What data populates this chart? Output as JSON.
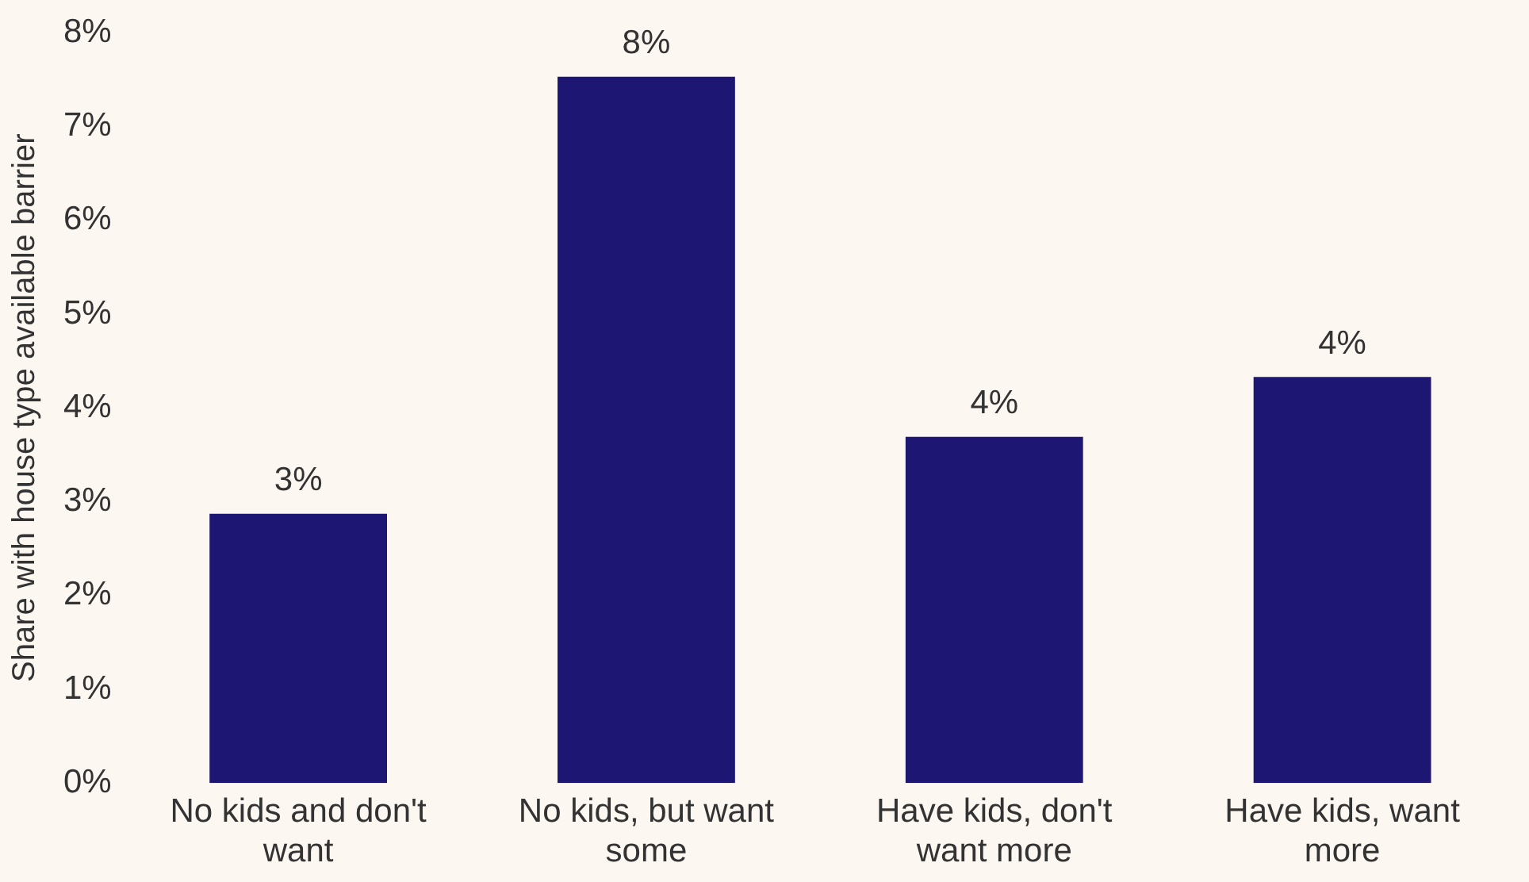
{
  "chart_data": {
    "type": "bar",
    "ylabel": "Share with house type available barrier",
    "categories": [
      "No kids and don't want",
      "No kids, but want some",
      "Have kids, don't want more",
      "Have kids, want more"
    ],
    "values": [
      2.87,
      7.53,
      3.69,
      4.33
    ],
    "color": "#1e1673",
    "value_labels": [
      "3%",
      "8%",
      "4%",
      "4%"
    ],
    "ylim": [
      0,
      8
    ],
    "yticks": [
      {
        "value": 0,
        "label": "0%"
      },
      {
        "value": 1,
        "label": "1%"
      },
      {
        "value": 2,
        "label": "2%"
      },
      {
        "value": 3,
        "label": "3%"
      },
      {
        "value": 4,
        "label": "4%"
      },
      {
        "value": 5,
        "label": "5%"
      },
      {
        "value": 6,
        "label": "6%"
      },
      {
        "value": 7,
        "label": "7%"
      },
      {
        "value": 8,
        "label": "8%"
      }
    ],
    "grid": false,
    "legend": false
  }
}
